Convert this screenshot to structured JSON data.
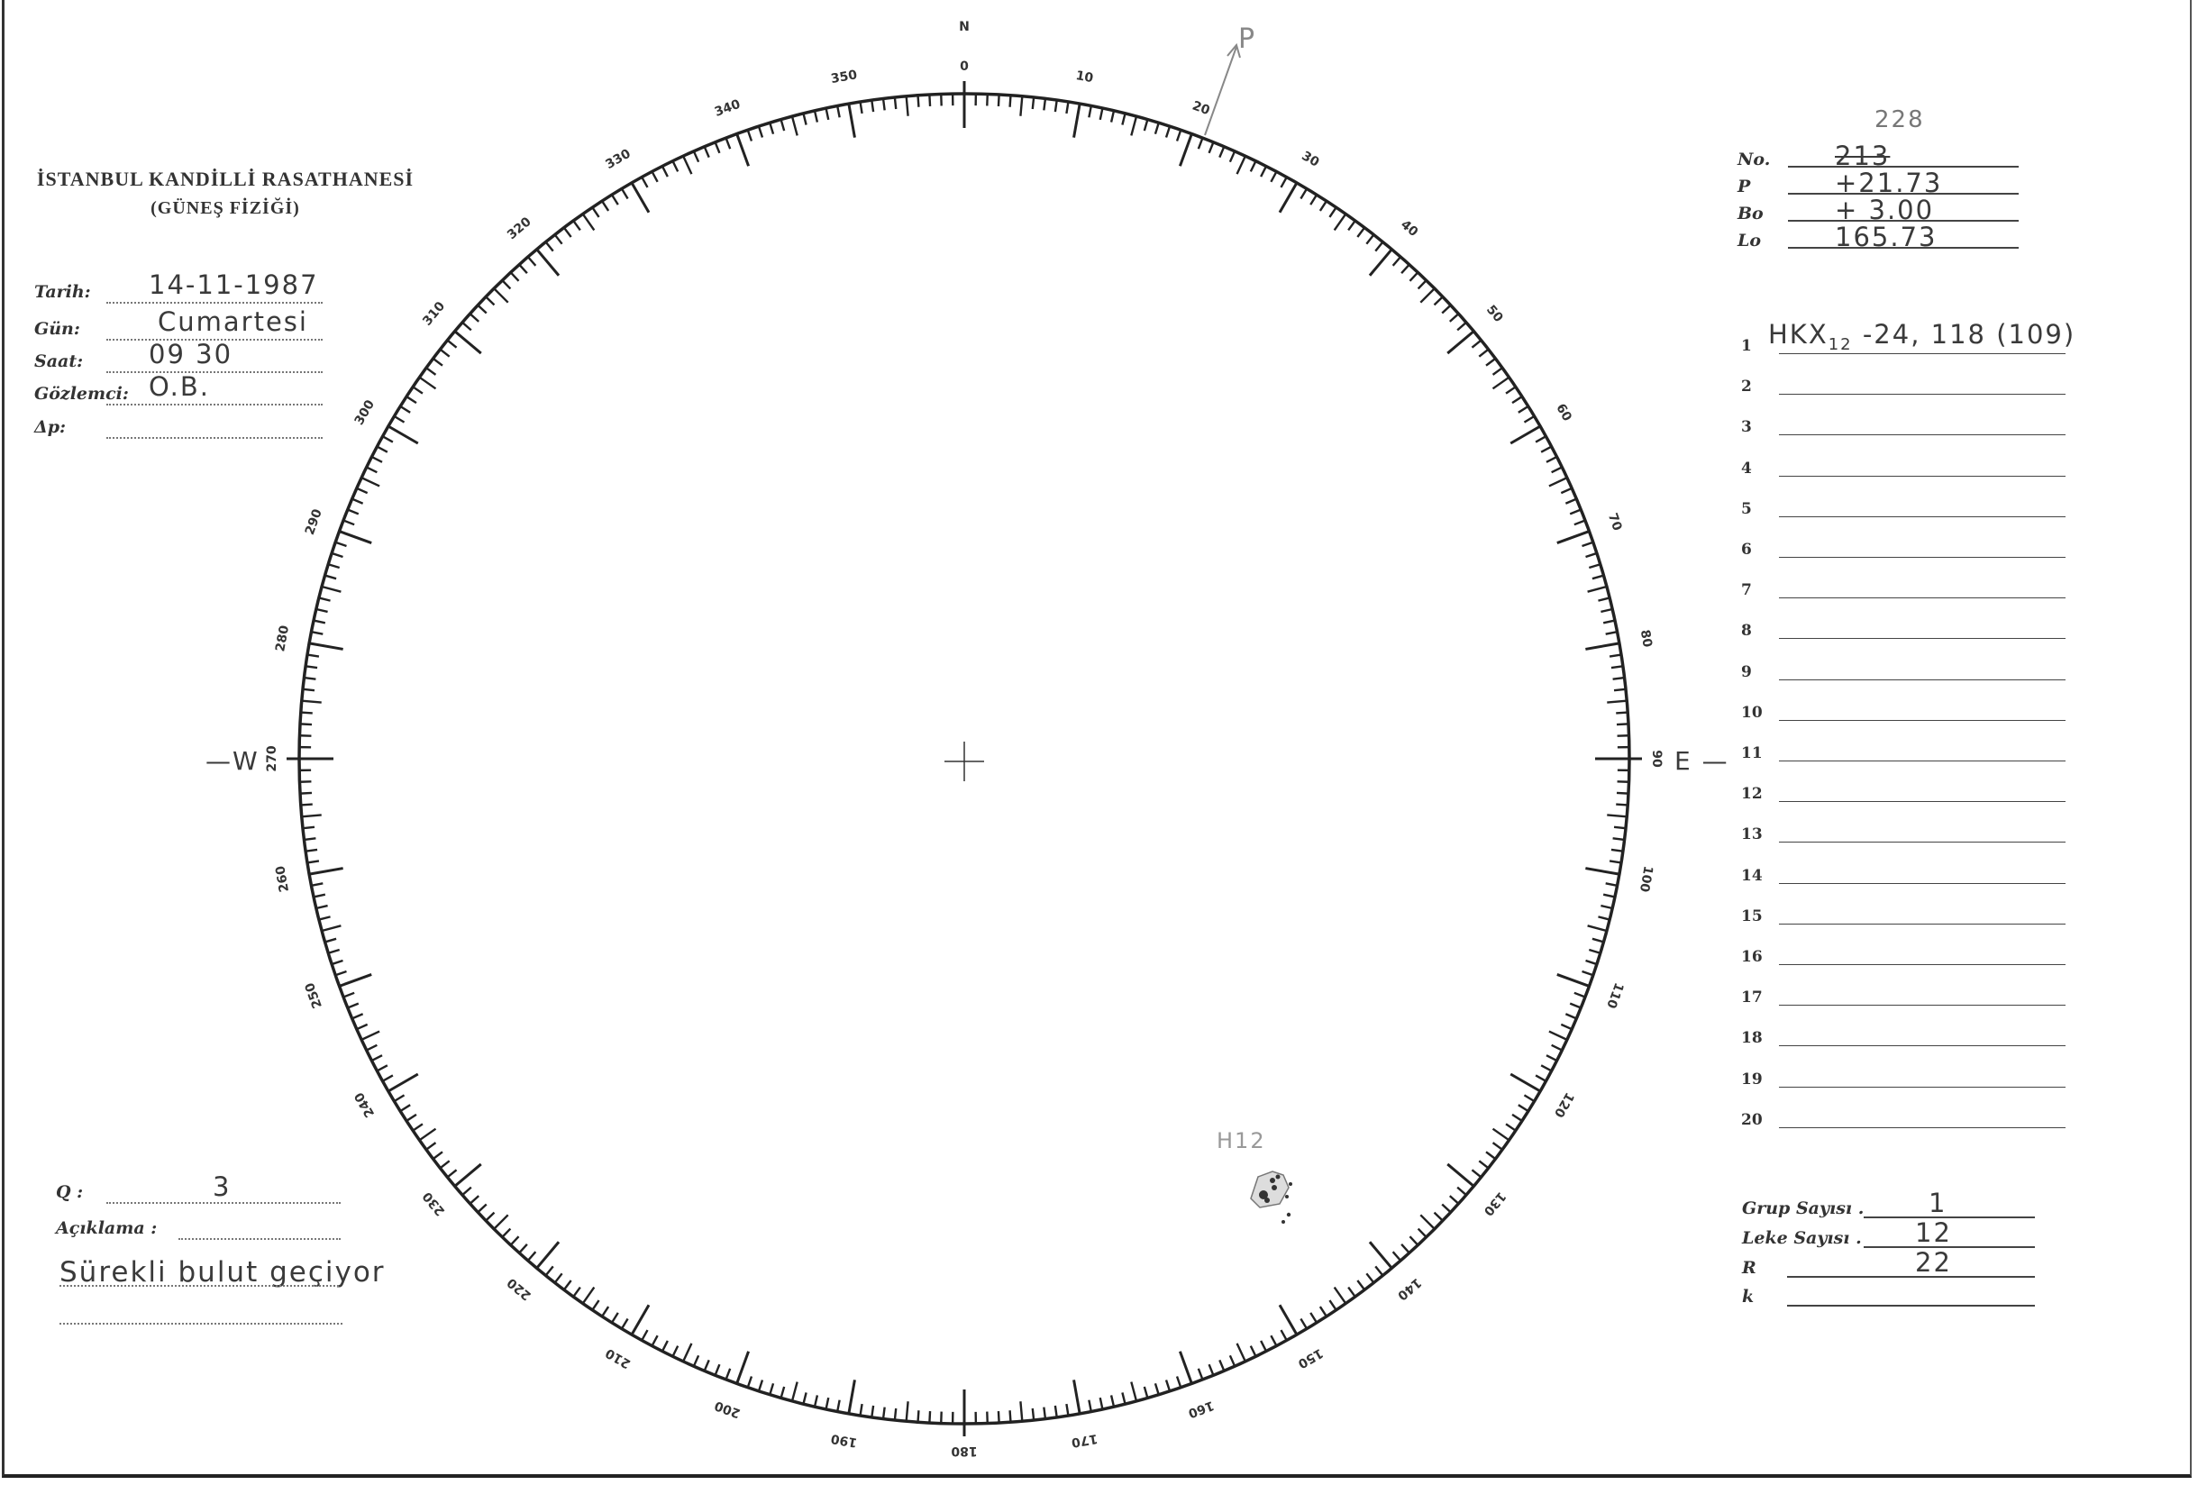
{
  "header": {
    "institution": "İSTANBUL KANDİLLİ RASATHANESİ",
    "department": "(GÜNEŞ FİZİĞİ)"
  },
  "observation": [
    {
      "label": "Tarih:",
      "value": "14-11-1987"
    },
    {
      "label": "Gün:",
      "value": "Cumartesi"
    },
    {
      "label": "Saat:",
      "value": "09 30"
    },
    {
      "label": "Gözlemci:",
      "value": "O.B."
    },
    {
      "label": "Δp:",
      "value": ""
    }
  ],
  "ephemeris": {
    "no_correction": "228",
    "rows": [
      {
        "label": "No.",
        "value": "213"
      },
      {
        "label": "P",
        "value": "+21.73"
      },
      {
        "label": "Bo",
        "value": "+ 3.00"
      },
      {
        "label": "Lo",
        "value": "165.73"
      }
    ]
  },
  "groups": [
    {
      "n": "1",
      "text": "HKX",
      "sub": "12",
      "rest": " -24, 118  (109)"
    },
    {
      "n": "2",
      "text": ""
    },
    {
      "n": "3",
      "text": ""
    },
    {
      "n": "4",
      "text": ""
    },
    {
      "n": "5",
      "text": ""
    },
    {
      "n": "6",
      "text": ""
    },
    {
      "n": "7",
      "text": ""
    },
    {
      "n": "8",
      "text": ""
    },
    {
      "n": "9",
      "text": ""
    },
    {
      "n": "10",
      "text": ""
    },
    {
      "n": "11",
      "text": ""
    },
    {
      "n": "12",
      "text": ""
    },
    {
      "n": "13",
      "text": ""
    },
    {
      "n": "14",
      "text": ""
    },
    {
      "n": "15",
      "text": ""
    },
    {
      "n": "16",
      "text": ""
    },
    {
      "n": "17",
      "text": ""
    },
    {
      "n": "18",
      "text": ""
    },
    {
      "n": "19",
      "text": ""
    },
    {
      "n": "20",
      "text": ""
    }
  ],
  "counts": [
    {
      "label": "Grup Sayısı .",
      "value": "1"
    },
    {
      "label": "Leke Sayısı .",
      "value": "12"
    },
    {
      "label": "R",
      "value": "22"
    },
    {
      "label": "k",
      "value": ""
    }
  ],
  "quality": {
    "label": "Q :",
    "value": "3"
  },
  "remarks": {
    "label": "Açıklama :",
    "value": "Sürekli bulut geçiyor"
  },
  "disk": {
    "north": "N",
    "west": "W",
    "east": "E",
    "pole_mark": "P",
    "spot_label": "H12",
    "degree_labels": [
      "0",
      "10",
      "20",
      "30",
      "40",
      "50",
      "60",
      "70",
      "80",
      "90",
      "100",
      "110",
      "120",
      "130",
      "140",
      "150",
      "160",
      "170",
      "180",
      "190",
      "200",
      "210",
      "220",
      "230",
      "240",
      "250",
      "260",
      "270",
      "280",
      "290",
      "300",
      "310",
      "320",
      "330",
      "340",
      "350"
    ]
  }
}
